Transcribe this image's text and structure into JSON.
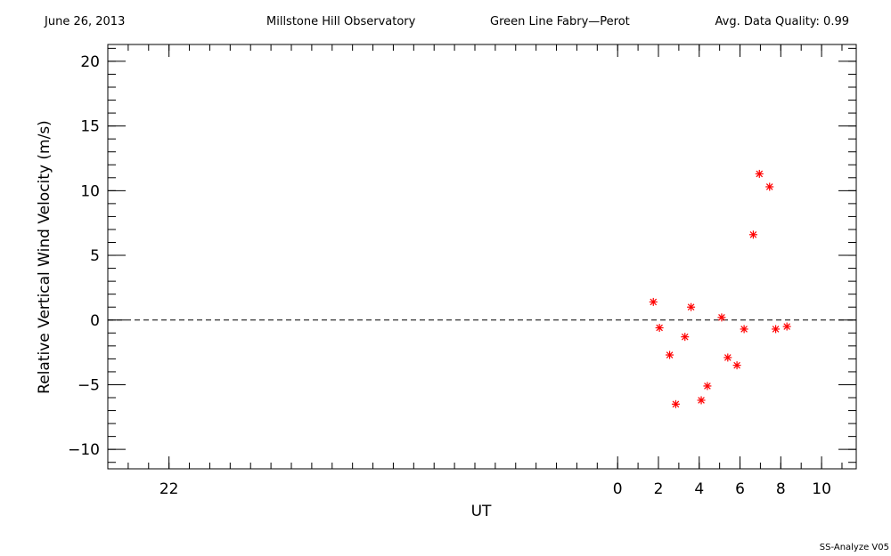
{
  "header": {
    "date": "June 26, 2013",
    "observatory": "Millstone Hill Observatory",
    "instrument": "Green Line Fabry—Perot",
    "quality": "Avg. Data Quality: 0.99"
  },
  "footer": {
    "credit": "SS-Analyze V05"
  },
  "chart_data": {
    "type": "scatter",
    "xlabel": "UT",
    "ylabel": "Relative Vertical Wind Velocity (m/s)",
    "xlim": [
      -25,
      11.7
    ],
    "ylim": [
      -11.5,
      21.3
    ],
    "x_ticks": [
      {
        "v": -22,
        "label": "22"
      },
      {
        "v": 0,
        "label": "0"
      },
      {
        "v": 2,
        "label": "2"
      },
      {
        "v": 4,
        "label": "4"
      },
      {
        "v": 6,
        "label": "6"
      },
      {
        "v": 8,
        "label": "8"
      },
      {
        "v": 10,
        "label": "10"
      }
    ],
    "y_ticks": [
      {
        "v": -10,
        "label": "−10"
      },
      {
        "v": -5,
        "label": "−5"
      },
      {
        "v": 0,
        "label": "0"
      },
      {
        "v": 5,
        "label": "5"
      },
      {
        "v": 10,
        "label": "10"
      },
      {
        "v": 15,
        "label": "15"
      },
      {
        "v": 20,
        "label": "20"
      }
    ],
    "reference_line": 0,
    "marker_color": "#ff0000",
    "points": [
      {
        "x": 1.75,
        "y": 1.4
      },
      {
        "x": 2.05,
        "y": -0.6
      },
      {
        "x": 2.55,
        "y": -2.7
      },
      {
        "x": 2.85,
        "y": -6.5
      },
      {
        "x": 3.3,
        "y": -1.3
      },
      {
        "x": 3.6,
        "y": 1.0
      },
      {
        "x": 4.1,
        "y": -6.2
      },
      {
        "x": 4.4,
        "y": -5.1
      },
      {
        "x": 5.1,
        "y": 0.2
      },
      {
        "x": 5.4,
        "y": -2.9
      },
      {
        "x": 5.85,
        "y": -3.5
      },
      {
        "x": 6.2,
        "y": -0.7
      },
      {
        "x": 6.65,
        "y": 6.6
      },
      {
        "x": 6.95,
        "y": 11.3
      },
      {
        "x": 7.45,
        "y": 10.3
      },
      {
        "x": 7.75,
        "y": -0.7
      },
      {
        "x": 8.3,
        "y": -0.5
      }
    ]
  }
}
